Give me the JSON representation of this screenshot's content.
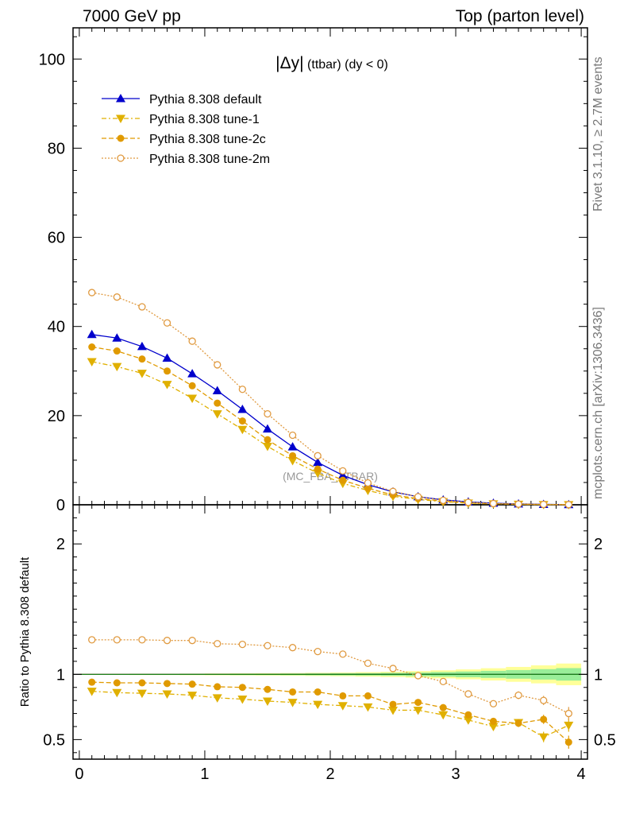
{
  "header": {
    "left": "7000 GeV pp",
    "right": "Top (parton level)"
  },
  "side_labels": {
    "top": "Rivet 3.1.10, ≥ 2.7M events",
    "bottom": "mcplots.cern.ch [arXiv:1306.3436]"
  },
  "chart_data": {
    "type": "line",
    "title_prefix": "|Δy|",
    "title_rest": " (ttbar) (dy < 0)",
    "watermark": "(MC_FBA_TTBAR)",
    "xlim": [
      -0.05,
      4.05
    ],
    "xticks": [
      "0",
      "1",
      "2",
      "3",
      "4"
    ],
    "x": [
      0.1,
      0.3,
      0.5,
      0.7,
      0.9,
      1.1,
      1.3,
      1.5,
      1.7,
      1.9,
      2.1,
      2.3,
      2.5,
      2.7,
      2.9,
      3.1,
      3.3,
      3.5,
      3.7,
      3.9
    ],
    "main": {
      "ylim": [
        0,
        107
      ],
      "yticks": [
        "0",
        "20",
        "40",
        "60",
        "80",
        "100"
      ],
      "series": [
        {
          "name": "Pythia 8.308 default",
          "color": "#0000cc",
          "marker": "triangle-up-filled",
          "linestyle": "solid",
          "values": [
            38.2,
            37.4,
            35.5,
            32.9,
            29.4,
            25.6,
            21.4,
            17.0,
            13.0,
            9.5,
            6.6,
            4.5,
            2.9,
            1.8,
            1.1,
            0.65,
            0.36,
            0.2,
            0.1,
            0.05
          ]
        },
        {
          "name": "Pythia 8.308 tune-1",
          "color": "#e0b000",
          "marker": "triangle-down-filled",
          "linestyle": "dashdot",
          "values": [
            32.1,
            31.0,
            29.5,
            27.0,
            23.9,
            20.4,
            16.9,
            13.1,
            9.9,
            7.1,
            4.8,
            3.2,
            1.9,
            1.2,
            0.68,
            0.37,
            0.2,
            0.12,
            0.05,
            0.03
          ]
        },
        {
          "name": "Pythia 8.308 tune-2c",
          "color": "#e09a00",
          "marker": "circle-filled",
          "linestyle": "dashed",
          "values": [
            35.4,
            34.5,
            32.7,
            30.0,
            26.7,
            22.8,
            18.8,
            14.6,
            11.0,
            8.0,
            5.5,
            3.7,
            2.2,
            1.4,
            0.8,
            0.44,
            0.23,
            0.12,
            0.06,
            0.02
          ]
        },
        {
          "name": "Pythia 8.308 tune-2m",
          "color": "#e09a40",
          "marker": "circle-open",
          "linestyle": "dotted",
          "values": [
            47.6,
            46.6,
            44.4,
            40.8,
            36.7,
            31.4,
            25.9,
            20.4,
            15.6,
            11.0,
            7.6,
            4.9,
            3.0,
            1.8,
            1.0,
            0.55,
            0.28,
            0.16,
            0.08,
            0.035
          ]
        }
      ]
    },
    "ratio": {
      "ylabel": "Ratio to Pythia 8.308 default",
      "ylim": [
        0.35,
        2.3
      ],
      "yticks": [
        {
          "v": 0.5,
          "label": "0.5"
        },
        {
          "v": 1,
          "label": "1"
        },
        {
          "v": 2,
          "label": "2"
        }
      ],
      "band_inner": [
        0.002,
        0.002,
        0.003,
        0.003,
        0.004,
        0.004,
        0.005,
        0.005,
        0.006,
        0.007,
        0.008,
        0.009,
        0.011,
        0.014,
        0.018,
        0.022,
        0.027,
        0.033,
        0.04,
        0.048
      ],
      "band_outer": [
        0.004,
        0.004,
        0.005,
        0.005,
        0.006,
        0.007,
        0.008,
        0.009,
        0.01,
        0.012,
        0.014,
        0.017,
        0.02,
        0.025,
        0.031,
        0.038,
        0.047,
        0.057,
        0.069,
        0.083
      ],
      "series": [
        {
          "name": "Pythia 8.308 tune-1",
          "values": [
            0.87,
            0.86,
            0.855,
            0.85,
            0.84,
            0.82,
            0.81,
            0.795,
            0.785,
            0.77,
            0.76,
            0.75,
            0.725,
            0.725,
            0.69,
            0.65,
            0.6,
            0.63,
            0.52,
            0.61
          ],
          "errors": [
            0.005,
            0.005,
            0.005,
            0.006,
            0.006,
            0.007,
            0.007,
            0.008,
            0.009,
            0.01,
            0.012,
            0.014,
            0.016,
            0.018,
            0.02,
            0.022,
            0.025,
            0.028,
            0.04,
            0.05
          ]
        },
        {
          "name": "Pythia 8.308 tune-2c",
          "values": [
            0.94,
            0.935,
            0.935,
            0.93,
            0.925,
            0.905,
            0.9,
            0.885,
            0.865,
            0.865,
            0.835,
            0.835,
            0.77,
            0.785,
            0.745,
            0.69,
            0.64,
            0.625,
            0.655,
            0.48
          ],
          "errors": [
            0.005,
            0.005,
            0.005,
            0.006,
            0.006,
            0.007,
            0.007,
            0.008,
            0.009,
            0.01,
            0.012,
            0.014,
            0.016,
            0.018,
            0.02,
            0.022,
            0.025,
            0.028,
            0.035,
            0.05
          ]
        },
        {
          "name": "Pythia 8.308 tune-2m",
          "values": [
            1.265,
            1.265,
            1.265,
            1.26,
            1.26,
            1.235,
            1.23,
            1.22,
            1.205,
            1.175,
            1.155,
            1.085,
            1.045,
            0.99,
            0.945,
            0.85,
            0.775,
            0.84,
            0.8,
            0.7
          ],
          "errors": [
            0.005,
            0.005,
            0.005,
            0.006,
            0.006,
            0.007,
            0.007,
            0.008,
            0.009,
            0.01,
            0.012,
            0.014,
            0.016,
            0.018,
            0.02,
            0.022,
            0.025,
            0.03,
            0.035,
            0.05
          ]
        }
      ]
    }
  }
}
